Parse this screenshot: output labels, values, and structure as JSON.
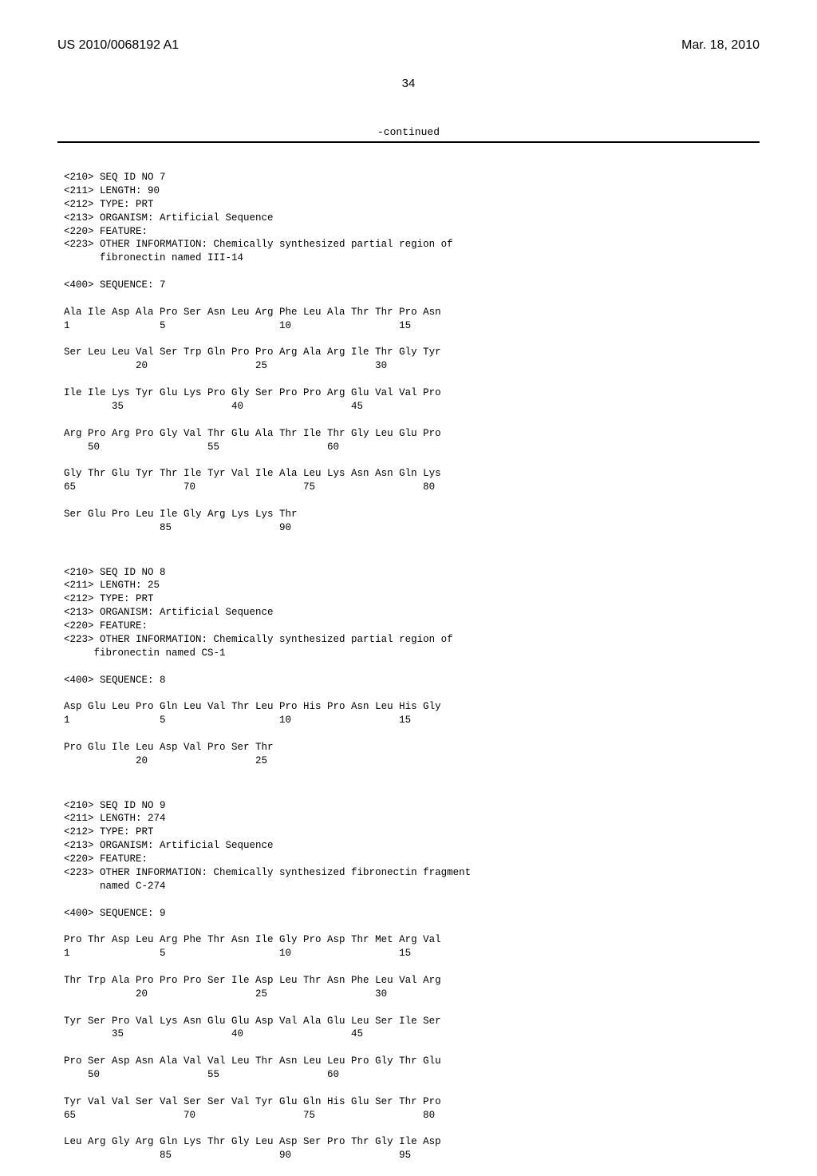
{
  "header": {
    "publication_number": "US 2010/0068192 A1",
    "publication_date": "Mar. 18, 2010"
  },
  "page_number": "34",
  "continued_label": "-continued",
  "sequences": [
    {
      "meta": [
        "<210> SEQ ID NO 7",
        "<211> LENGTH: 90",
        "<212> TYPE: PRT",
        "<213> ORGANISM: Artificial Sequence",
        "<220> FEATURE:",
        "<223> OTHER INFORMATION: Chemically synthesized partial region of",
        "      fibronectin named III-14"
      ],
      "sequence_header": "<400> SEQUENCE: 7",
      "rows": [
        {
          "aa": "Ala Ile Asp Ala Pro Ser Asn Leu Arg Phe Leu Ala Thr Thr Pro Asn",
          "pos": "1               5                   10                  15"
        },
        {
          "aa": "Ser Leu Leu Val Ser Trp Gln Pro Pro Arg Ala Arg Ile Thr Gly Tyr",
          "pos": "            20                  25                  30"
        },
        {
          "aa": "Ile Ile Lys Tyr Glu Lys Pro Gly Ser Pro Pro Arg Glu Val Val Pro",
          "pos": "        35                  40                  45"
        },
        {
          "aa": "Arg Pro Arg Pro Gly Val Thr Glu Ala Thr Ile Thr Gly Leu Glu Pro",
          "pos": "    50                  55                  60"
        },
        {
          "aa": "Gly Thr Glu Tyr Thr Ile Tyr Val Ile Ala Leu Lys Asn Asn Gln Lys",
          "pos": "65                  70                  75                  80"
        },
        {
          "aa": "Ser Glu Pro Leu Ile Gly Arg Lys Lys Thr",
          "pos": "                85                  90"
        }
      ]
    },
    {
      "meta": [
        "<210> SEQ ID NO 8",
        "<211> LENGTH: 25",
        "<212> TYPE: PRT",
        "<213> ORGANISM: Artificial Sequence",
        "<220> FEATURE:",
        "<223> OTHER INFORMATION: Chemically synthesized partial region of",
        "     fibronectin named CS-1"
      ],
      "sequence_header": "<400> SEQUENCE: 8",
      "rows": [
        {
          "aa": "Asp Glu Leu Pro Gln Leu Val Thr Leu Pro His Pro Asn Leu His Gly",
          "pos": "1               5                   10                  15"
        },
        {
          "aa": "Pro Glu Ile Leu Asp Val Pro Ser Thr",
          "pos": "            20                  25"
        }
      ]
    },
    {
      "meta": [
        "<210> SEQ ID NO 9",
        "<211> LENGTH: 274",
        "<212> TYPE: PRT",
        "<213> ORGANISM: Artificial Sequence",
        "<220> FEATURE:",
        "<223> OTHER INFORMATION: Chemically synthesized fibronectin fragment",
        "      named C-274"
      ],
      "sequence_header": "<400> SEQUENCE: 9",
      "rows": [
        {
          "aa": "Pro Thr Asp Leu Arg Phe Thr Asn Ile Gly Pro Asp Thr Met Arg Val",
          "pos": "1               5                   10                  15"
        },
        {
          "aa": "Thr Trp Ala Pro Pro Pro Ser Ile Asp Leu Thr Asn Phe Leu Val Arg",
          "pos": "            20                  25                  30"
        },
        {
          "aa": "Tyr Ser Pro Val Lys Asn Glu Glu Asp Val Ala Glu Leu Ser Ile Ser",
          "pos": "        35                  40                  45"
        },
        {
          "aa": "Pro Ser Asp Asn Ala Val Val Leu Thr Asn Leu Leu Pro Gly Thr Glu",
          "pos": "    50                  55                  60"
        },
        {
          "aa": "Tyr Val Val Ser Val Ser Ser Val Tyr Glu Gln His Glu Ser Thr Pro",
          "pos": "65                  70                  75                  80"
        },
        {
          "aa": "Leu Arg Gly Arg Gln Lys Thr Gly Leu Asp Ser Pro Thr Gly Ile Asp",
          "pos": "                85                  90                  95"
        }
      ]
    }
  ]
}
